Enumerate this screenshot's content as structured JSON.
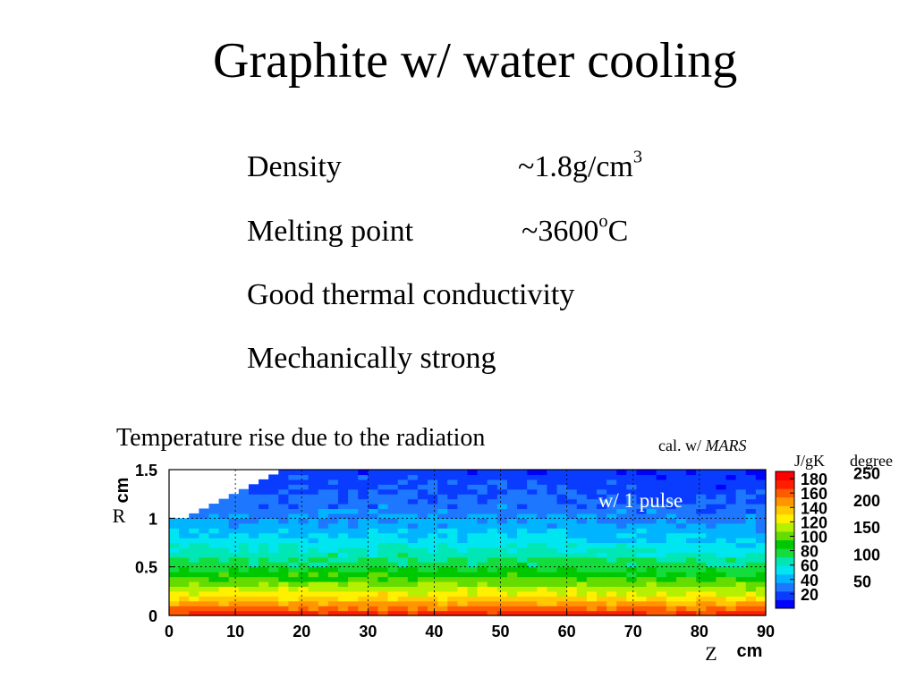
{
  "title": "Graphite w/ water cooling",
  "properties": [
    {
      "label": "Density",
      "value": "~1.8g/cm",
      "sup": "3",
      "suffix": ""
    },
    {
      "label": "Melting point",
      "value": "~3600",
      "sup": "o",
      "suffix": "C"
    },
    {
      "label": "Good thermal conductivity",
      "value": "",
      "sup": "",
      "suffix": ""
    },
    {
      "label": "Mechanically strong",
      "value": "",
      "sup": "",
      "suffix": ""
    }
  ],
  "plot_caption": "Temperature rise due to the radiation",
  "calc_prefix": "cal. w/ ",
  "calc_code": "MARS",
  "colorbar_unit": "J/gK",
  "degree_unit": "degree",
  "colors": {
    "scale": [
      "#0000ff",
      "#0a3cff",
      "#1e78ff",
      "#00b4ff",
      "#00e6f0",
      "#00e6b4",
      "#14dc3c",
      "#00c800",
      "#64dc00",
      "#b4f000",
      "#fff000",
      "#ffc800",
      "#ff9600",
      "#ff5a00",
      "#ff1e00",
      "#ff0000"
    ]
  },
  "chart_data": {
    "type": "heatmap",
    "title": "",
    "annotation": "w/ 1 pulse",
    "xlabel": "Z",
    "xunit": "cm",
    "ylabel": "R",
    "yunit": "cm",
    "xlim": [
      0,
      90
    ],
    "ylim": [
      0,
      1.5
    ],
    "xticks": [
      "0",
      "10",
      "20",
      "30",
      "40",
      "50",
      "60",
      "70",
      "80",
      "90"
    ],
    "yticks": [
      "0",
      "0.5",
      "1",
      "1.5"
    ],
    "colorbar_ticks": [
      "20",
      "40",
      "60",
      "80",
      "100",
      "120",
      "140",
      "160",
      "180"
    ],
    "colorbar_range": [
      0,
      190
    ],
    "degree_ticks": [
      "50",
      "100",
      "150",
      "200",
      "250"
    ],
    "degree_per_jgk_ratio": 1.33,
    "value_model": "J/gK values decrease with radius: ~170-180 at R=0, ~120 at R=0.35, ~80 at R=0.6, ~40 at R=0.9, ~10 at R=1.5; upper-left corner (Z<18, R>1) is empty"
  }
}
